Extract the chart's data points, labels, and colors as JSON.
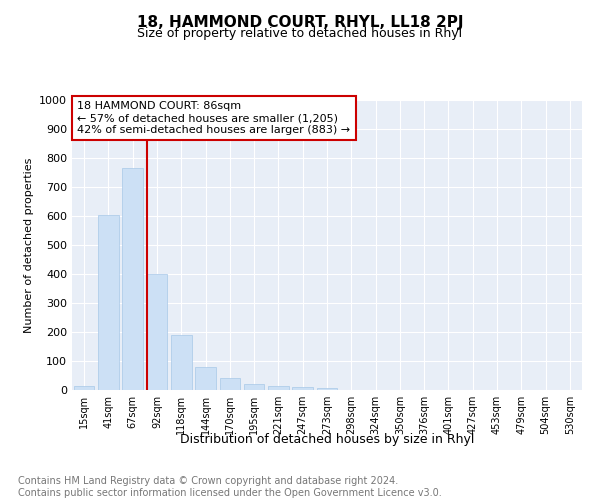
{
  "title": "18, HAMMOND COURT, RHYL, LL18 2PJ",
  "subtitle": "Size of property relative to detached houses in Rhyl",
  "xlabel": "Distribution of detached houses by size in Rhyl",
  "ylabel": "Number of detached properties",
  "bar_values": [
    15,
    605,
    765,
    400,
    190,
    78,
    40,
    20,
    15,
    10,
    8,
    0,
    0,
    0,
    0,
    0,
    0,
    0,
    0,
    0,
    0
  ],
  "bar_labels": [
    "15sqm",
    "41sqm",
    "67sqm",
    "92sqm",
    "118sqm",
    "144sqm",
    "170sqm",
    "195sqm",
    "221sqm",
    "247sqm",
    "273sqm",
    "298sqm",
    "324sqm",
    "350sqm",
    "376sqm",
    "401sqm",
    "427sqm",
    "453sqm",
    "479sqm",
    "504sqm",
    "530sqm"
  ],
  "bar_color": "#cce0f5",
  "bar_edge_color": "#a8c8e8",
  "vertical_line_color": "#cc0000",
  "annotation_line1": "18 HAMMOND COURT: 86sqm",
  "annotation_line2": "← 57% of detached houses are smaller (1,205)",
  "annotation_line3": "42% of semi-detached houses are larger (883) →",
  "annotation_box_color": "#ffffff",
  "annotation_box_edge_color": "#cc0000",
  "ylim": [
    0,
    1000
  ],
  "yticks": [
    0,
    100,
    200,
    300,
    400,
    500,
    600,
    700,
    800,
    900,
    1000
  ],
  "background_color": "#e8eef7",
  "footer_text": "Contains HM Land Registry data © Crown copyright and database right 2024.\nContains public sector information licensed under the Open Government Licence v3.0.",
  "title_fontsize": 11,
  "subtitle_fontsize": 9,
  "annotation_fontsize": 8,
  "footer_fontsize": 7,
  "ylabel_fontsize": 8,
  "xlabel_fontsize": 9,
  "num_bars": 21,
  "vline_x": 2.57
}
